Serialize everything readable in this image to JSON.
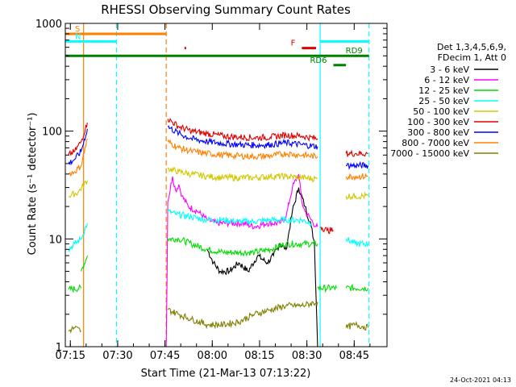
{
  "chart_data": {
    "type": "line",
    "title": "RHESSI Observing Summary Count Rates",
    "xlabel": "Start Time (21-Mar-13 07:13:22)",
    "ylabel": "Count Rate (s⁻¹ detector⁻¹)",
    "x_unit": "minutes after 07:13:22",
    "xlim": [
      0,
      102
    ],
    "ylim": [
      1,
      1000
    ],
    "yscale": "log",
    "x_ticks": [
      {
        "x": 1.6,
        "label": "07:15"
      },
      {
        "x": 16.6,
        "label": "07:30"
      },
      {
        "x": 31.6,
        "label": "07:45"
      },
      {
        "x": 46.6,
        "label": "08:00"
      },
      {
        "x": 61.6,
        "label": "08:15"
      },
      {
        "x": 76.6,
        "label": "08:30"
      },
      {
        "x": 91.6,
        "label": "08:45"
      }
    ],
    "y_ticks": [
      {
        "y": 1,
        "label": "1"
      },
      {
        "y": 10,
        "label": "10"
      },
      {
        "y": 100,
        "label": "100"
      },
      {
        "y": 1000,
        "label": "1000"
      }
    ],
    "legend": {
      "placement": "right",
      "header": [
        "Det 1,3,4,5,6,9,",
        "FDecim 1, Att 0"
      ],
      "entries": [
        {
          "label": "3 - 6 keV",
          "color": "#000000"
        },
        {
          "label": "6 - 12 keV",
          "color": "#ff00ff"
        },
        {
          "label": "12 - 25 keV",
          "color": "#00dd00"
        },
        {
          "label": "25 - 50 keV",
          "color": "#00ffff"
        },
        {
          "label": "50 - 100 keV",
          "color": "#d2c800"
        },
        {
          "label": "100 - 300 keV",
          "color": "#e00000"
        },
        {
          "label": "300 - 800 keV",
          "color": "#0000ff"
        },
        {
          "label": "800 - 7000 keV",
          "color": "#ff8000"
        },
        {
          "label": "7000 - 15000 keV",
          "color": "#808000"
        }
      ]
    },
    "series": [
      {
        "name": "3 - 6 keV",
        "color": "#000000",
        "segments": [
          [
            [
              45,
              8
            ],
            [
              47,
              6
            ],
            [
              49,
              5
            ],
            [
              52,
              5
            ],
            [
              55,
              6
            ],
            [
              58,
              5
            ],
            [
              61,
              7
            ],
            [
              64,
              6
            ],
            [
              66,
              7
            ],
            [
              68,
              9
            ],
            [
              70,
              8
            ],
            [
              72,
              18
            ],
            [
              74,
              30
            ],
            [
              76,
              20
            ],
            [
              78,
              13
            ],
            [
              79,
              9
            ],
            [
              80,
              1
            ]
          ]
        ]
      },
      {
        "name": "6 - 12 keV",
        "color": "#ff00ff",
        "segments": [
          [
            [
              32,
              1
            ],
            [
              32.5,
              22
            ],
            [
              34,
              38
            ],
            [
              35,
              28
            ],
            [
              36,
              32
            ],
            [
              37,
              25
            ],
            [
              39,
              20
            ],
            [
              42,
              18
            ],
            [
              45,
              15
            ],
            [
              48,
              14
            ],
            [
              52,
              14
            ],
            [
              56,
              14
            ],
            [
              60,
              13
            ],
            [
              64,
              14
            ],
            [
              68,
              14
            ],
            [
              70,
              16
            ],
            [
              72,
              30
            ],
            [
              74,
              40
            ],
            [
              75,
              22
            ],
            [
              76,
              18
            ],
            [
              78,
              15
            ],
            [
              79.5,
              13
            ],
            [
              80,
              13
            ]
          ]
        ]
      },
      {
        "name": "12 - 25 keV",
        "color": "#00dd00",
        "segments": [
          [
            [
              1,
              3.4
            ],
            [
              5,
              3.5
            ]
          ],
          [
            [
              5,
              5
            ],
            [
              7,
              7
            ]
          ],
          [
            [
              32.5,
              10
            ],
            [
              36,
              10
            ],
            [
              40,
              9
            ],
            [
              45,
              8
            ],
            [
              50,
              7.5
            ],
            [
              55,
              7.5
            ],
            [
              60,
              7.5
            ],
            [
              65,
              8
            ],
            [
              70,
              9
            ],
            [
              75,
              9
            ],
            [
              80,
              9
            ]
          ],
          [
            [
              80,
              3.5
            ],
            [
              86,
              3.5
            ]
          ],
          [
            [
              89,
              3.5
            ],
            [
              96,
              3.5
            ]
          ]
        ]
      },
      {
        "name": "25 - 50 keV",
        "color": "#00ffff",
        "segments": [
          [
            [
              1,
              8
            ],
            [
              3,
              9
            ],
            [
              5,
              10
            ],
            [
              7,
              14
            ]
          ],
          [
            [
              32.5,
              18
            ],
            [
              35,
              17
            ],
            [
              40,
              16
            ],
            [
              45,
              15
            ],
            [
              50,
              15
            ],
            [
              55,
              14.5
            ],
            [
              60,
              14.5
            ],
            [
              65,
              15
            ],
            [
              70,
              15
            ],
            [
              75,
              15
            ],
            [
              78,
              14
            ]
          ],
          [
            [
              89,
              10
            ],
            [
              92,
              9
            ],
            [
              96,
              9
            ]
          ]
        ]
      },
      {
        "name": "50 - 100 keV",
        "color": "#d2c800",
        "segments": [
          [
            [
              1,
              25
            ],
            [
              4,
              27
            ],
            [
              7,
              35
            ]
          ],
          [
            [
              32.5,
              45
            ],
            [
              36,
              42
            ],
            [
              40,
              40
            ],
            [
              45,
              38
            ],
            [
              50,
              37
            ],
            [
              55,
              37
            ],
            [
              60,
              37
            ],
            [
              65,
              38
            ],
            [
              70,
              38
            ],
            [
              75,
              37
            ],
            [
              80,
              36
            ]
          ],
          [
            [
              89,
              25
            ],
            [
              92,
              25
            ],
            [
              96,
              25
            ]
          ]
        ]
      },
      {
        "name": "100 - 300 keV",
        "color": "#e00000",
        "segments": [
          [
            [
              1,
              60
            ],
            [
              3,
              65
            ],
            [
              5,
              80
            ],
            [
              7,
              120
            ]
          ],
          [
            [
              32.5,
              130
            ],
            [
              36,
              110
            ],
            [
              40,
              100
            ],
            [
              45,
              95
            ],
            [
              50,
              90
            ],
            [
              55,
              88
            ],
            [
              60,
              87
            ],
            [
              65,
              88
            ],
            [
              70,
              92
            ],
            [
              75,
              90
            ],
            [
              80,
              85
            ]
          ],
          [
            [
              81,
              13
            ],
            [
              83,
              12
            ],
            [
              85,
              12
            ]
          ],
          [
            [
              89,
              62
            ],
            [
              92,
              62
            ],
            [
              96,
              62
            ]
          ]
        ]
      },
      {
        "name": "300 - 800 keV",
        "color": "#0000ff",
        "segments": [
          [
            [
              1,
              50
            ],
            [
              3,
              55
            ],
            [
              5,
              65
            ],
            [
              7,
              105
            ]
          ],
          [
            [
              32.5,
              110
            ],
            [
              36,
              95
            ],
            [
              40,
              85
            ],
            [
              45,
              80
            ],
            [
              50,
              77
            ],
            [
              55,
              75
            ],
            [
              60,
              74
            ],
            [
              65,
              75
            ],
            [
              70,
              78
            ],
            [
              75,
              75
            ],
            [
              80,
              72
            ]
          ],
          [
            [
              89,
              48
            ],
            [
              92,
              48
            ],
            [
              96,
              48
            ]
          ]
        ]
      },
      {
        "name": "800 - 7000 keV",
        "color": "#ff8000",
        "segments": [
          [
            [
              1,
              40
            ],
            [
              3,
              42
            ],
            [
              5,
              48
            ],
            [
              7,
              85
            ]
          ],
          [
            [
              32.5,
              80
            ],
            [
              36,
              70
            ],
            [
              40,
              65
            ],
            [
              45,
              62
            ],
            [
              50,
              60
            ],
            [
              55,
              59
            ],
            [
              60,
              58
            ],
            [
              65,
              59
            ],
            [
              70,
              62
            ],
            [
              75,
              60
            ],
            [
              80,
              58
            ]
          ],
          [
            [
              89,
              38
            ],
            [
              92,
              38
            ],
            [
              96,
              38
            ]
          ]
        ]
      },
      {
        "name": "7000 - 15000 keV",
        "color": "#808000",
        "segments": [
          [
            [
              1,
              1.4
            ],
            [
              3,
              1.5
            ],
            [
              5,
              1.4
            ]
          ],
          [
            [
              32.5,
              2.2
            ],
            [
              36,
              2
            ],
            [
              40,
              1.8
            ],
            [
              45,
              1.6
            ],
            [
              50,
              1.6
            ],
            [
              55,
              1.7
            ],
            [
              60,
              2
            ],
            [
              65,
              2.2
            ],
            [
              70,
              2.4
            ],
            [
              75,
              2.4
            ],
            [
              80,
              2.6
            ]
          ],
          [
            [
              89,
              1.5
            ],
            [
              92,
              1.6
            ],
            [
              96,
              1.5
            ]
          ]
        ]
      }
    ],
    "vertical_markers": [
      {
        "x": 5.8,
        "color": "#ff8000",
        "style": "solid"
      },
      {
        "x": 16.2,
        "color": "#00ffff",
        "style": "dashed"
      },
      {
        "x": 32.0,
        "color": "#ff8000",
        "style": "dashed"
      },
      {
        "x": 80.8,
        "color": "#00ffff",
        "style": "solid"
      },
      {
        "x": 96.3,
        "color": "#00ffff",
        "style": "dashed"
      }
    ],
    "flag_bars": [
      {
        "label": "S",
        "color": "#ff8000",
        "x0": 0,
        "x1": 32.0,
        "y": 800,
        "label_at": "left"
      },
      {
        "label": "N",
        "color": "#00ffff",
        "x0": 0,
        "x1": 16.2,
        "y": 680,
        "label_at": "left"
      },
      {
        "label": "N",
        "color": "#00ffff",
        "x0": 80.8,
        "x1": 96.3,
        "y": 680,
        "label_at": "none"
      },
      {
        "label": "F",
        "color": "#e00000",
        "x0": 75,
        "x1": 79.5,
        "y": 590,
        "label_at": "left"
      },
      {
        "label": "",
        "color": "#e00000",
        "x0": 37.8,
        "x1": 38.3,
        "y": 590,
        "label_at": "none"
      },
      {
        "label": "RD9",
        "color": "#008000",
        "x0": 0,
        "x1": 96.3,
        "y": 500,
        "label_at": "right"
      },
      {
        "label": "RD6",
        "color": "#008000",
        "x0": 85,
        "x1": 89,
        "y": 410,
        "label_at": "left"
      }
    ]
  },
  "timestamp": "24-Oct-2021 04:13"
}
